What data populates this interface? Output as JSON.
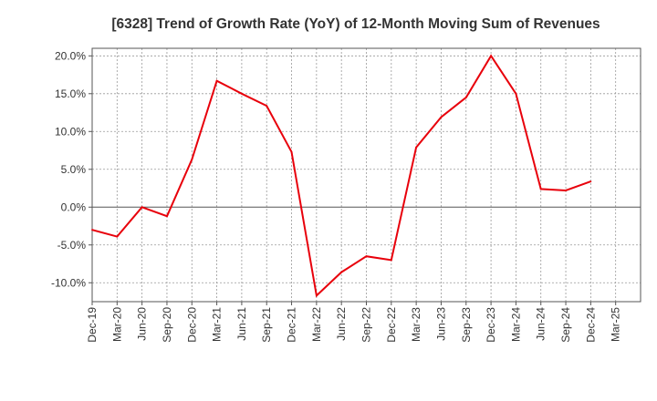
{
  "chart_data": {
    "type": "line",
    "title": "[6328]  Trend of Growth Rate (YoY) of 12-Month Moving Sum of Revenues",
    "xlabel": "",
    "ylabel": "",
    "x_tick_labels": [
      "Dec-19",
      "Mar-20",
      "Jun-20",
      "Sep-20",
      "Dec-20",
      "Mar-21",
      "Jun-21",
      "Sep-21",
      "Dec-21",
      "Mar-22",
      "Jun-22",
      "Sep-22",
      "Dec-22",
      "Mar-23",
      "Jun-23",
      "Sep-23",
      "Dec-23",
      "Mar-24",
      "Jun-24",
      "Sep-24",
      "Dec-24",
      "Mar-25"
    ],
    "y_tick_labels": [
      "20.0%",
      "15.0%",
      "10.0%",
      "5.0%",
      "0.0%",
      "-5.0%",
      "-10.0%"
    ],
    "y_ticks": [
      20,
      15,
      10,
      5,
      0,
      -5,
      -10
    ],
    "ylim": [
      -12.5,
      21
    ],
    "grid": true,
    "legend": "none",
    "series": [
      {
        "color": "#e8000b",
        "x": [
          "Dec-19",
          "Mar-20",
          "Jun-20",
          "Sep-20",
          "Dec-20",
          "Mar-21",
          "Jun-21",
          "Sep-21",
          "Dec-21",
          "Mar-22",
          "Jun-22",
          "Sep-22",
          "Dec-22",
          "Mar-23",
          "Jun-23",
          "Sep-23",
          "Dec-23",
          "Mar-24",
          "Jun-24",
          "Sep-24",
          "Dec-24"
        ],
        "values": [
          -3.0,
          -3.9,
          0.0,
          -1.2,
          6.3,
          16.7,
          15.0,
          13.4,
          7.3,
          -11.7,
          -8.6,
          -6.5,
          -7.0,
          7.9,
          11.9,
          14.5,
          20.0,
          15.0,
          2.4,
          2.2,
          3.4
        ]
      }
    ]
  }
}
